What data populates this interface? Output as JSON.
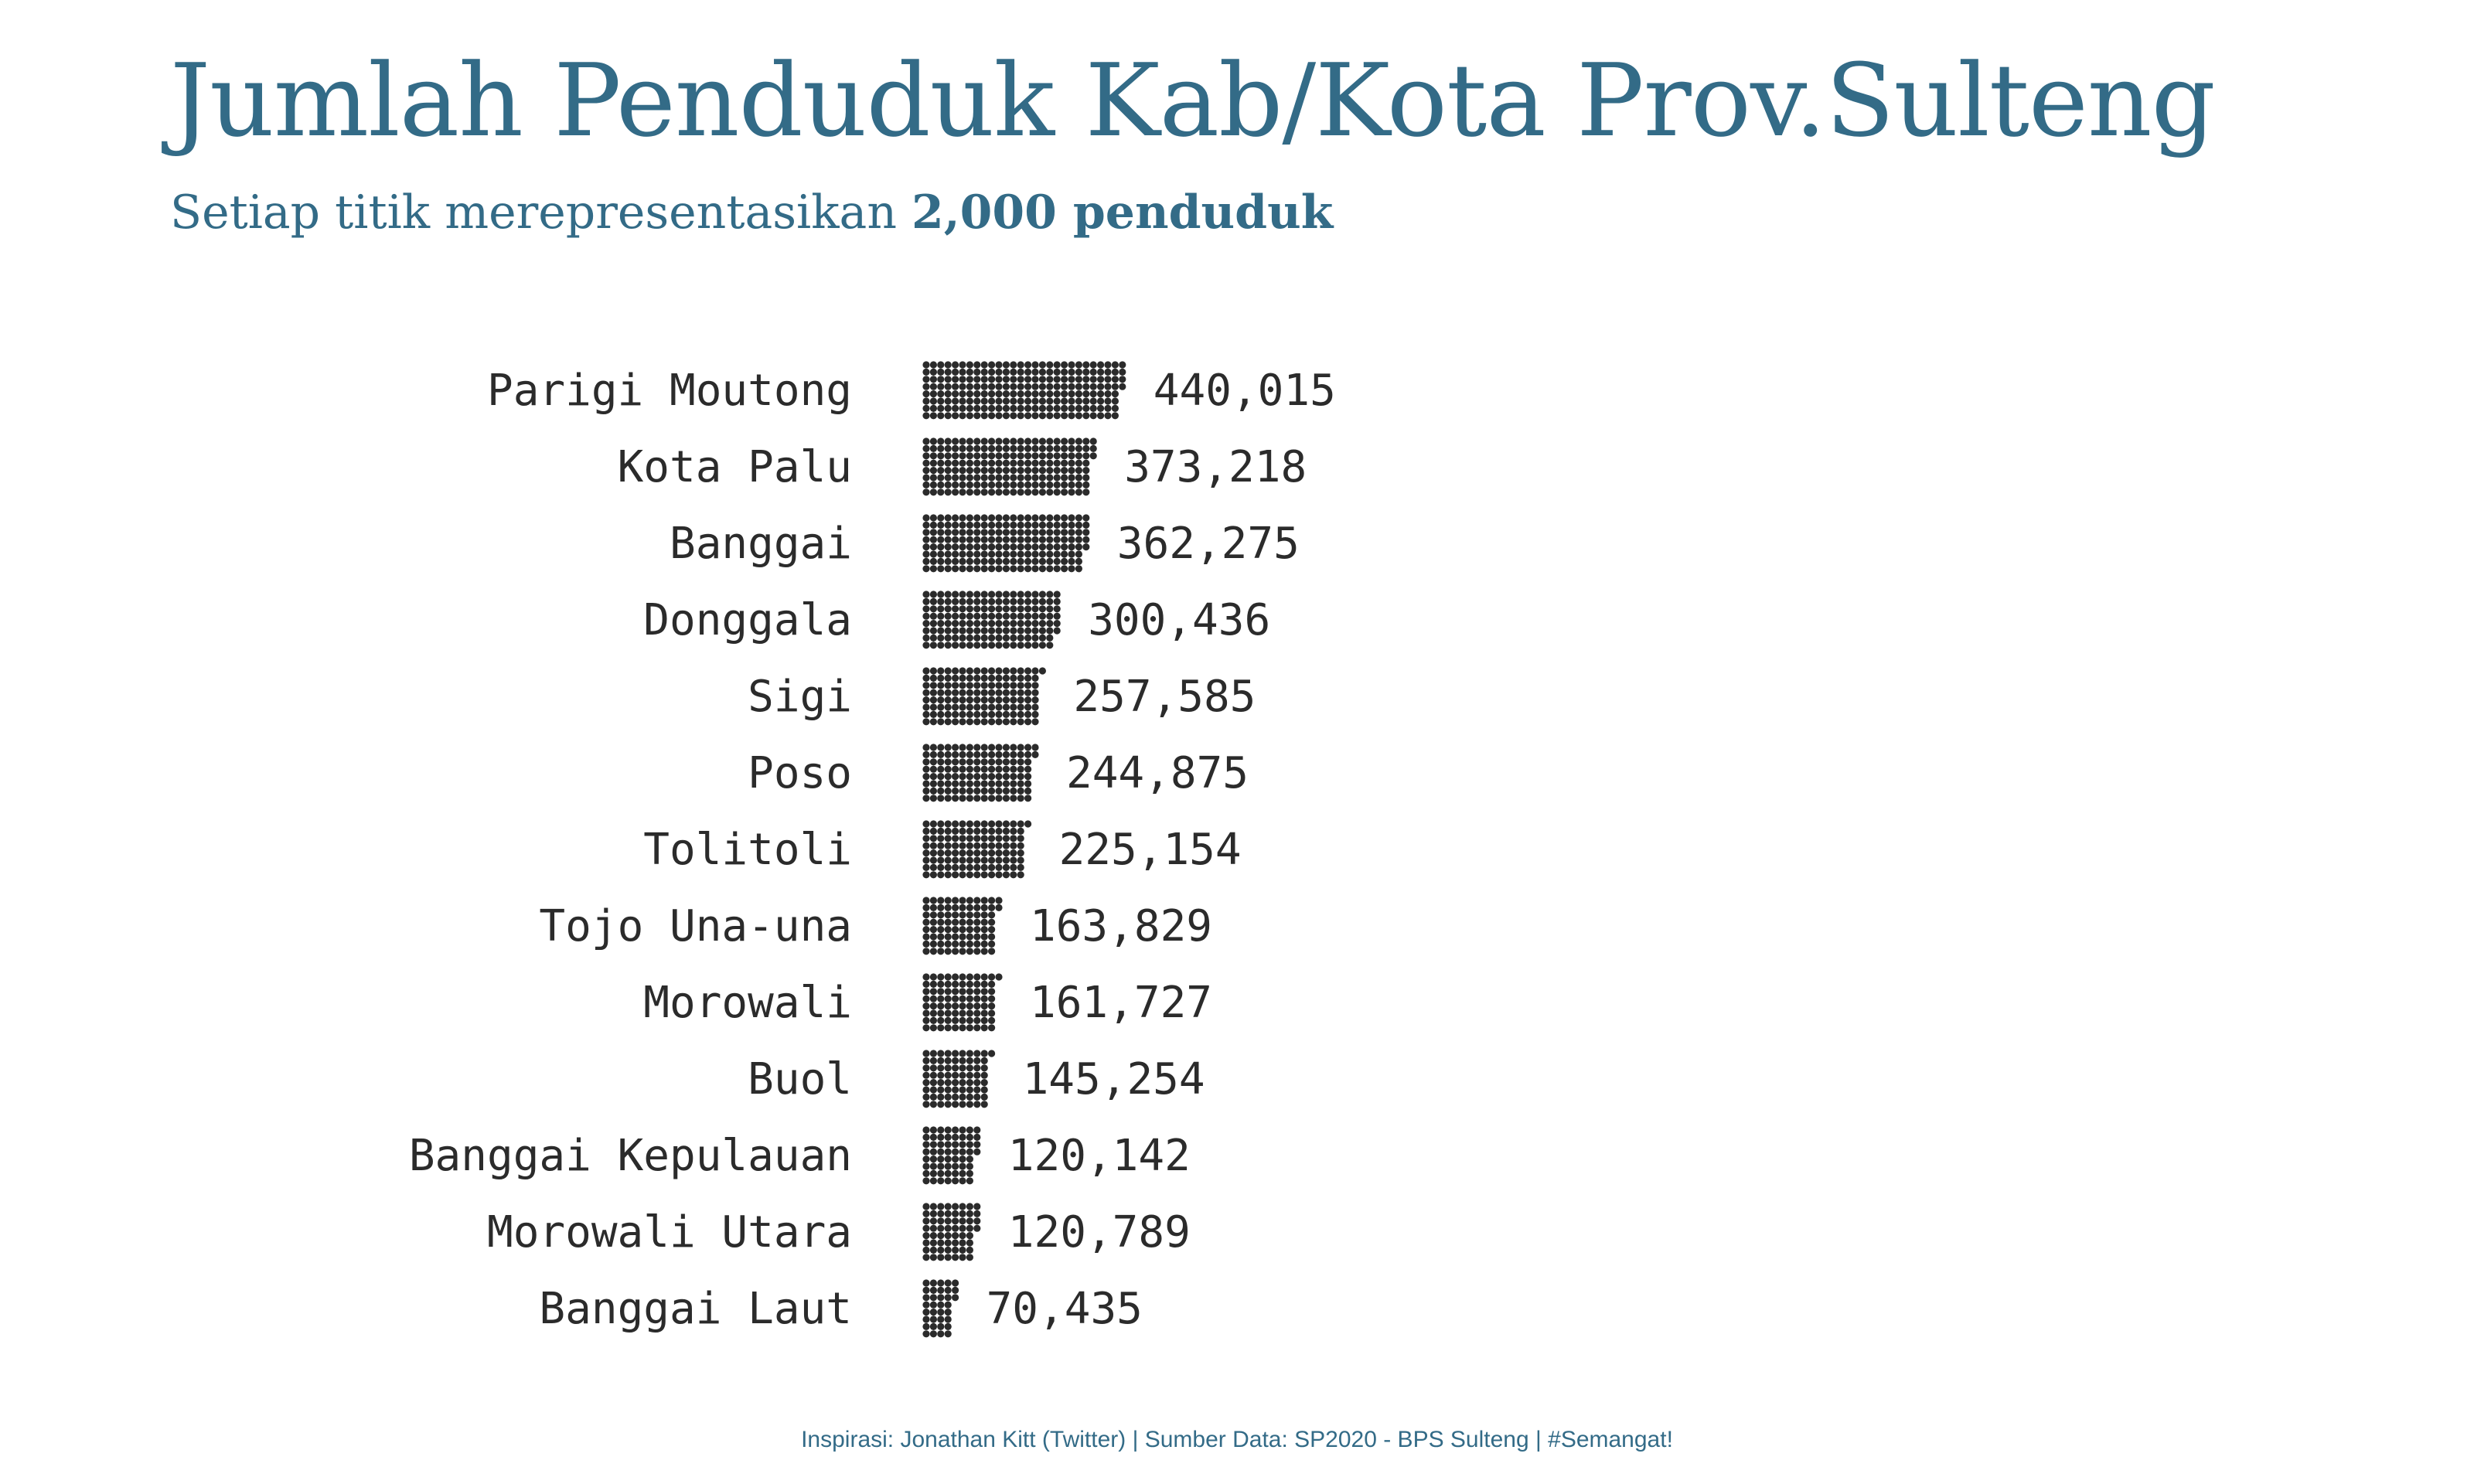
{
  "header": {
    "title": "Jumlah Penduduk Kab/Kota Prov.Sulteng",
    "subtitle_prefix": "Setiap titik merepresentasikan ",
    "subtitle_bold": "2,000 penduduk"
  },
  "caption": "Inspirasi: Jonathan Kitt (Twitter) | Sumber Data: SP2020 - BPS Sulteng | #Semangat!",
  "colors": {
    "title": "#336b87",
    "dot": "#2b2b2b",
    "text": "#2b2b2b"
  },
  "chart_data": {
    "type": "bar",
    "orientation": "horizontal",
    "mark": "dot-matrix",
    "dot_unit": 2000,
    "dots_per_column": 8,
    "categories": [
      "Parigi Moutong",
      "Kota Palu",
      "Banggai",
      "Donggala",
      "Sigi",
      "Poso",
      "Tolitoli",
      "Tojo Una-una",
      "Morowali",
      "Buol",
      "Banggai Kepulauan",
      "Morowali Utara",
      "Banggai Laut"
    ],
    "values": [
      440015,
      373218,
      362275,
      300436,
      257585,
      244875,
      225154,
      163829,
      161727,
      145254,
      120142,
      120789,
      70435
    ],
    "value_labels": [
      "440,015",
      "373,218",
      "362,275",
      "300,436",
      "257,585",
      "244,875",
      "225,154",
      "163,829",
      "161,727",
      "145,254",
      "120,142",
      "120,789",
      "70,435"
    ],
    "title": "Jumlah Penduduk Kab/Kota Prov.Sulteng",
    "subtitle": "Setiap titik merepresentasikan 2,000 penduduk",
    "xlabel": "",
    "ylabel": "",
    "grid": false,
    "legend": "none"
  }
}
